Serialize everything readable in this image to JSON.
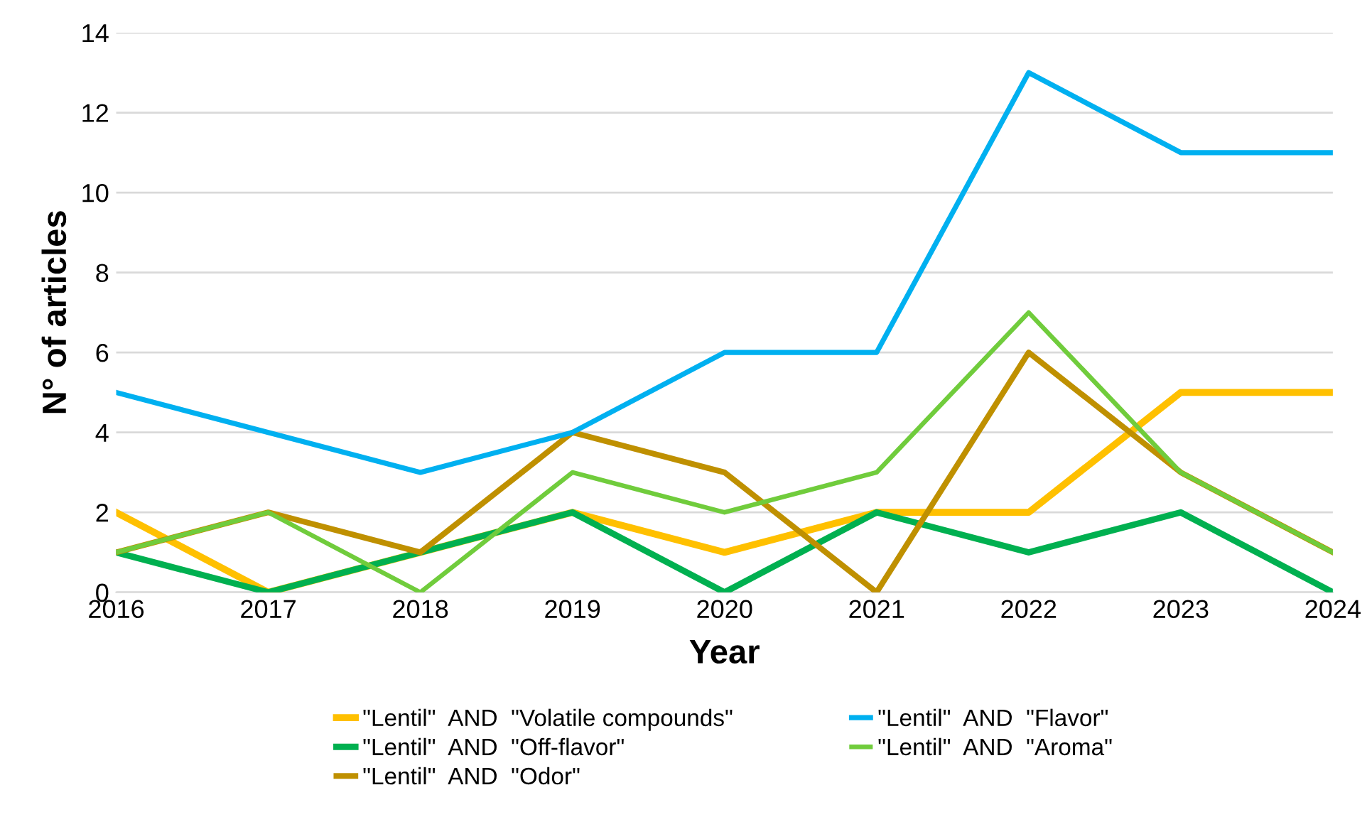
{
  "chart_data": {
    "type": "line",
    "xlabel": "Year",
    "ylabel": "N° of articles",
    "x": [
      2016,
      2017,
      2018,
      2019,
      2020,
      2021,
      2022,
      2023,
      2024
    ],
    "xlim": [
      2016,
      2024
    ],
    "xticks": [
      2016,
      2017,
      2018,
      2019,
      2020,
      2021,
      2022,
      2023,
      2024
    ],
    "ylim": [
      0,
      14
    ],
    "yticks": [
      0,
      2,
      4,
      6,
      8,
      10,
      12,
      14
    ],
    "grid": "y",
    "legend": "bottom",
    "marker": "none",
    "line_style": "solid",
    "series": [
      {
        "name": "\"Lentil\"  AND  \"Volatile compounds\"",
        "color": "#ffc000",
        "values": [
          2,
          0,
          1,
          2,
          1,
          2,
          2,
          5,
          5
        ]
      },
      {
        "name": "\"Lentil\"  AND  \"Off-flavor\"",
        "color": "#00b050",
        "values": [
          1,
          0,
          1,
          2,
          0,
          2,
          1,
          2,
          0
        ]
      },
      {
        "name": "\"Lentil\"  AND  \"Odor\"",
        "color": "#bf9000",
        "values": [
          1,
          2,
          1,
          4,
          3,
          0,
          6,
          3,
          1
        ]
      },
      {
        "name": "\"Lentil\"  AND  \"Flavor\"",
        "color": "#00b0f0",
        "values": [
          5,
          4,
          3,
          4,
          6,
          6,
          13,
          11,
          11
        ]
      },
      {
        "name": "\"Lentil\"  AND  \"Aroma\"",
        "color": "#70cc3c",
        "values": [
          1,
          2,
          0,
          3,
          2,
          3,
          7,
          3,
          1
        ]
      }
    ]
  }
}
